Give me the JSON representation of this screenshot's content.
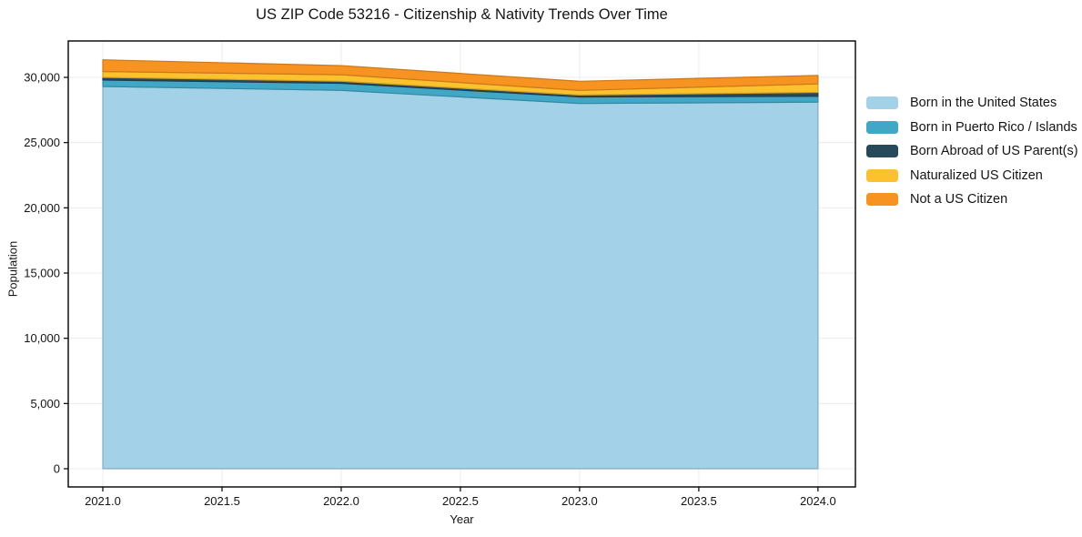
{
  "title": "US ZIP Code 53216 - Citizenship & Nativity Trends Over Time",
  "chart_data": {
    "type": "area",
    "stacked": true,
    "title": "US ZIP Code 53216 - Citizenship & Nativity Trends Over Time",
    "xlabel": "Year",
    "ylabel": "Population",
    "x": [
      2021,
      2022,
      2023,
      2024
    ],
    "series": [
      {
        "name": "Born in the United States",
        "color": "#a3d1e8",
        "values": [
          29300,
          29000,
          28000,
          28100
        ]
      },
      {
        "name": "Born in Puerto Rico / Islands",
        "color": "#40a7c6",
        "values": [
          500,
          550,
          500,
          450
        ]
      },
      {
        "name": "Born Abroad of US Parent(s)",
        "color": "#27495c",
        "values": [
          200,
          150,
          150,
          300
        ]
      },
      {
        "name": "Naturalized US Citizen",
        "color": "#fcc22e",
        "values": [
          450,
          500,
          350,
          650
        ]
      },
      {
        "name": "Not a US Citizen",
        "color": "#f79321",
        "values": [
          900,
          700,
          700,
          650
        ]
      }
    ],
    "totals": [
      31350,
      30900,
      29700,
      30150
    ],
    "x_ticks": [
      "2021.0",
      "2021.5",
      "2022.0",
      "2022.5",
      "2023.0",
      "2023.5",
      "2024.0"
    ],
    "y_ticks": [
      "0",
      "5,000",
      "10,000",
      "15,000",
      "20,000",
      "25,000",
      "30,000"
    ],
    "xlim": [
      2020.855,
      2024.157
    ],
    "ylim": [
      -1395,
      32791
    ],
    "grid": true,
    "grid_color": "#ececec",
    "spine_color": "#000000",
    "text_color": "#141414",
    "legend_position": "right-outside"
  }
}
